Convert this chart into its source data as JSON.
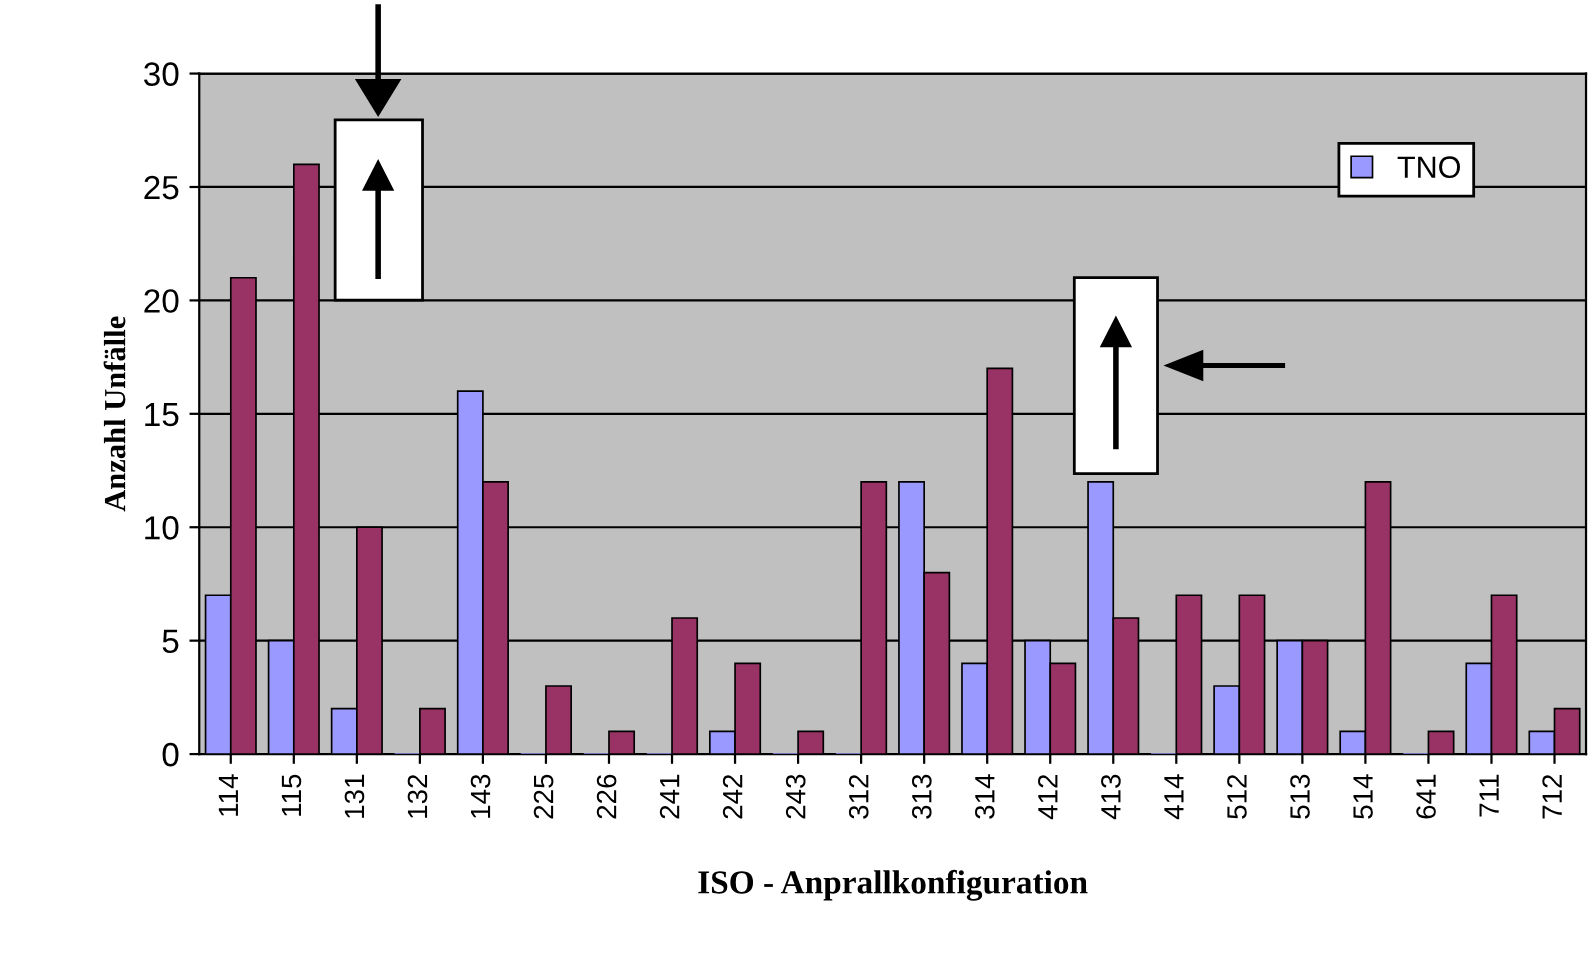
{
  "chart_data": {
    "type": "bar",
    "xlabel": "ISO - Anprallkonfiguration",
    "ylabel": "Anzahl Unfälle",
    "categories": [
      "114",
      "115",
      "131",
      "132",
      "143",
      "225",
      "226",
      "241",
      "242",
      "243",
      "312",
      "313",
      "314",
      "412",
      "413",
      "414",
      "512",
      "513",
      "514",
      "641",
      "711",
      "712"
    ],
    "series": [
      {
        "name": "TNO",
        "color": "#9999ff",
        "values": [
          7,
          5,
          2,
          0,
          16,
          0,
          0,
          0,
          1,
          0,
          0,
          12,
          4,
          5,
          12,
          0,
          3,
          5,
          1,
          0,
          4,
          1
        ]
      },
      {
        "color": "#993366",
        "values": [
          21,
          26,
          10,
          2,
          12,
          3,
          1,
          6,
          4,
          1,
          12,
          8,
          17,
          4,
          6,
          7,
          7,
          5,
          12,
          1,
          7,
          2
        ]
      }
    ],
    "ylim": [
      0,
      30
    ],
    "yticks": [
      0,
      5,
      10,
      15,
      20,
      25,
      30
    ],
    "grid": "y",
    "legend": "top right"
  }
}
